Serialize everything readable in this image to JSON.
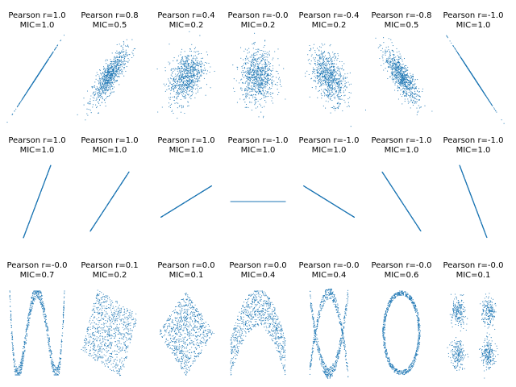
{
  "figure": {
    "point_color": "#1f77b4",
    "background": "#ffffff"
  },
  "chart_data": [
    {
      "type": "scatter",
      "title": "Pearson r=1.0",
      "subtitle": "MIC=1.0",
      "pattern": "correlated",
      "correlation": 1.0,
      "n_points": 800
    },
    {
      "type": "scatter",
      "title": "Pearson r=0.8",
      "subtitle": "MIC=0.5",
      "pattern": "correlated",
      "correlation": 0.8,
      "n_points": 800
    },
    {
      "type": "scatter",
      "title": "Pearson r=0.4",
      "subtitle": "MIC=0.2",
      "pattern": "correlated",
      "correlation": 0.4,
      "n_points": 800
    },
    {
      "type": "scatter",
      "title": "Pearson r=-0.0",
      "subtitle": "MIC=0.2",
      "pattern": "correlated",
      "correlation": 0.0,
      "n_points": 800
    },
    {
      "type": "scatter",
      "title": "Pearson r=-0.4",
      "subtitle": "MIC=0.2",
      "pattern": "correlated",
      "correlation": -0.4,
      "n_points": 800
    },
    {
      "type": "scatter",
      "title": "Pearson r=-0.8",
      "subtitle": "MIC=0.5",
      "pattern": "correlated",
      "correlation": -0.8,
      "n_points": 800
    },
    {
      "type": "scatter",
      "title": "Pearson r=-1.0",
      "subtitle": "MIC=1.0",
      "pattern": "correlated",
      "correlation": -1.0,
      "n_points": 800
    },
    {
      "type": "scatter",
      "title": "Pearson r=1.0",
      "subtitle": "MIC=1.0",
      "pattern": "rotated_line",
      "angle_deg": 60,
      "n_points": 800
    },
    {
      "type": "scatter",
      "title": "Pearson r=1.0",
      "subtitle": "MIC=1.0",
      "pattern": "rotated_line",
      "angle_deg": 45,
      "n_points": 800
    },
    {
      "type": "scatter",
      "title": "Pearson r=1.0",
      "subtitle": "MIC=1.0",
      "pattern": "rotated_line",
      "angle_deg": 22,
      "n_points": 800
    },
    {
      "type": "scatter",
      "title": "Pearson r=-1.0",
      "subtitle": "MIC=1.0",
      "pattern": "rotated_line",
      "angle_deg": 0,
      "n_points": 800
    },
    {
      "type": "scatter",
      "title": "Pearson r=-1.0",
      "subtitle": "MIC=1.0",
      "pattern": "rotated_line",
      "angle_deg": -22,
      "n_points": 800
    },
    {
      "type": "scatter",
      "title": "Pearson r=-1.0",
      "subtitle": "MIC=1.0",
      "pattern": "rotated_line",
      "angle_deg": -45,
      "n_points": 800
    },
    {
      "type": "scatter",
      "title": "Pearson r=-1.0",
      "subtitle": "MIC=1.0",
      "pattern": "rotated_line",
      "angle_deg": -60,
      "n_points": 800
    },
    {
      "type": "scatter",
      "title": "Pearson r=-0.0",
      "subtitle": "MIC=0.7",
      "pattern": "w_shape",
      "n_points": 800
    },
    {
      "type": "scatter",
      "title": "Pearson r=0.1",
      "subtitle": "MIC=0.2",
      "pattern": "rotated_square",
      "n_points": 800
    },
    {
      "type": "scatter",
      "title": "Pearson r=0.0",
      "subtitle": "MIC=0.1",
      "pattern": "diamond",
      "n_points": 800
    },
    {
      "type": "scatter",
      "title": "Pearson r=0.0",
      "subtitle": "MIC=0.4",
      "pattern": "parabola",
      "n_points": 800
    },
    {
      "type": "scatter",
      "title": "Pearson r=-0.0",
      "subtitle": "MIC=0.4",
      "pattern": "x_shape",
      "n_points": 800
    },
    {
      "type": "scatter",
      "title": "Pearson r=-0.0",
      "subtitle": "MIC=0.6",
      "pattern": "ring",
      "n_points": 800
    },
    {
      "type": "scatter",
      "title": "Pearson r=-0.0",
      "subtitle": "MIC=0.1",
      "pattern": "four_clusters",
      "n_points": 800
    }
  ]
}
